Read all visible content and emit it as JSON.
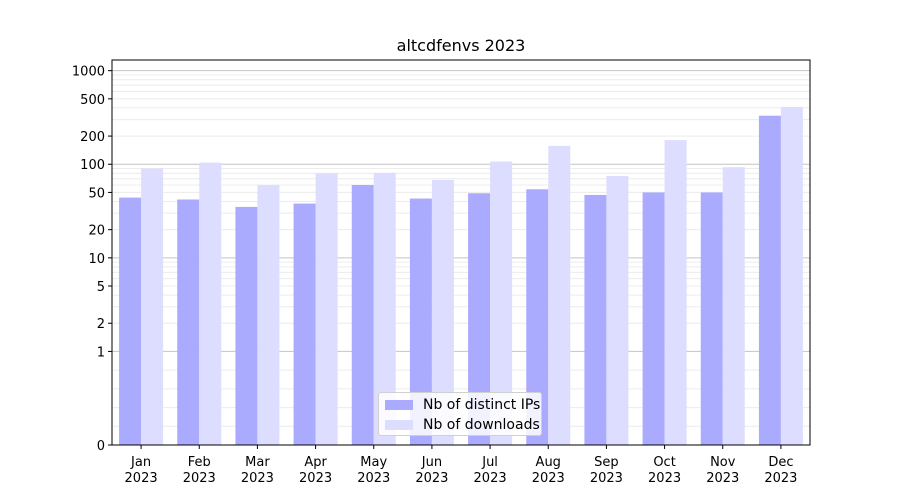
{
  "chart_data": {
    "type": "bar",
    "title": "altcdfenvs 2023",
    "xlabel": "",
    "ylabel": "",
    "y_scale": "symlog",
    "ylim": [
      0,
      1300
    ],
    "y_ticks": [
      0,
      1,
      2,
      5,
      10,
      20,
      50,
      100,
      200,
      500,
      1000
    ],
    "y_tick_labels": [
      "0",
      "1",
      "2",
      "5",
      "10",
      "20",
      "50",
      "100",
      "200",
      "500",
      "1000"
    ],
    "grid": true,
    "legend_position": "bottom-center",
    "categories": [
      [
        "Jan",
        "2023"
      ],
      [
        "Feb",
        "2023"
      ],
      [
        "Mar",
        "2023"
      ],
      [
        "Apr",
        "2023"
      ],
      [
        "May",
        "2023"
      ],
      [
        "Jun",
        "2023"
      ],
      [
        "Jul",
        "2023"
      ],
      [
        "Aug",
        "2023"
      ],
      [
        "Sep",
        "2023"
      ],
      [
        "Oct",
        "2023"
      ],
      [
        "Nov",
        "2023"
      ],
      [
        "Dec",
        "2023"
      ]
    ],
    "series": [
      {
        "name": "Nb of distinct IPs",
        "color": "#aaaaff",
        "values": [
          44,
          42,
          35,
          38,
          60,
          43,
          49,
          54,
          47,
          50,
          50,
          330
        ]
      },
      {
        "name": "Nb of downloads",
        "color": "#ddddff",
        "values": [
          90,
          104,
          60,
          80,
          81,
          68,
          107,
          157,
          75,
          181,
          93,
          410
        ]
      }
    ]
  }
}
